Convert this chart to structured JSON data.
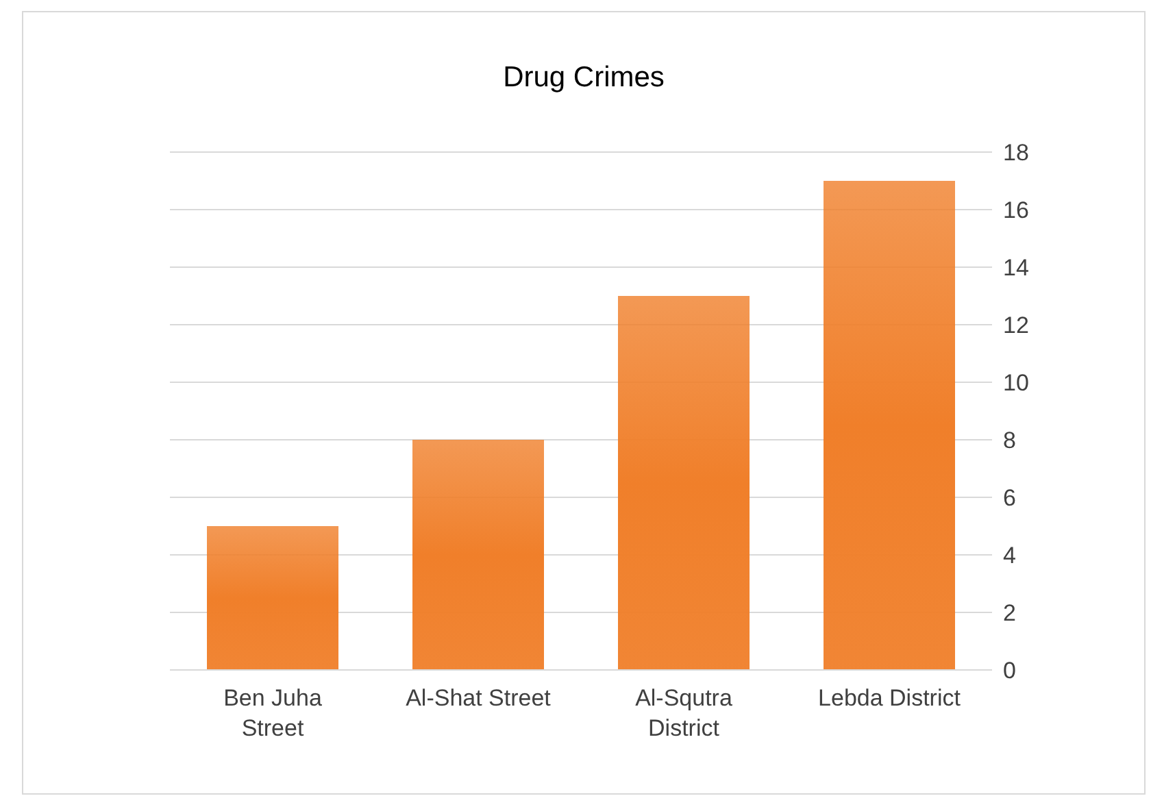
{
  "chart_data": {
    "type": "bar",
    "title": "Drug Crimes",
    "categories": [
      "Ben Juha Street",
      "Al-Shat Street",
      "Al-Squtra District",
      "Lebda District"
    ],
    "values": [
      5,
      8,
      13,
      17
    ],
    "color": "#f07f2a",
    "ylim": [
      0,
      18
    ],
    "yticks": [
      0,
      2,
      4,
      6,
      8,
      10,
      12,
      14,
      16,
      18
    ],
    "grid": "y"
  }
}
